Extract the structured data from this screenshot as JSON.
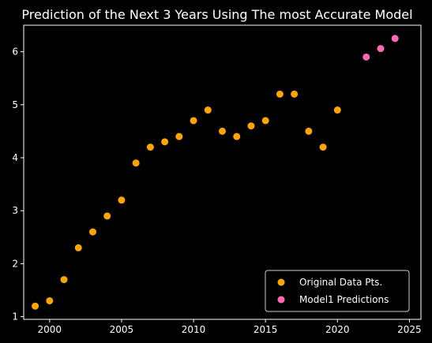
{
  "chart_data": {
    "type": "scatter",
    "title": "Prediction of the Next 3 Years Using The most Accurate Model",
    "xlabel": "",
    "ylabel": "",
    "xlim": [
      1998.2,
      2025.8
    ],
    "ylim": [
      0.95,
      6.5
    ],
    "x_ticks": [
      2000,
      2005,
      2010,
      2015,
      2020,
      2025
    ],
    "y_ticks": [
      1,
      2,
      3,
      4,
      5,
      6
    ],
    "grid": false,
    "legend_position": "lower-right",
    "series": [
      {
        "name": "Original Data Pts.",
        "color": "#ffa500",
        "x": [
          1999,
          2000,
          2001,
          2002,
          2003,
          2004,
          2005,
          2006,
          2007,
          2008,
          2009,
          2010,
          2011,
          2012,
          2013,
          2014,
          2015,
          2016,
          2017,
          2018,
          2019,
          2020
        ],
        "y": [
          1.2,
          1.3,
          1.7,
          2.3,
          2.6,
          2.9,
          3.2,
          3.9,
          4.2,
          4.3,
          4.4,
          4.7,
          4.9,
          4.5,
          4.4,
          4.6,
          4.7,
          5.2,
          5.2,
          4.5,
          4.2,
          4.9
        ]
      },
      {
        "name": "Model1 Predictions",
        "color": "#ff69b4",
        "x": [
          2022,
          2023,
          2024
        ],
        "y": [
          5.9,
          6.06,
          6.25
        ]
      }
    ]
  }
}
